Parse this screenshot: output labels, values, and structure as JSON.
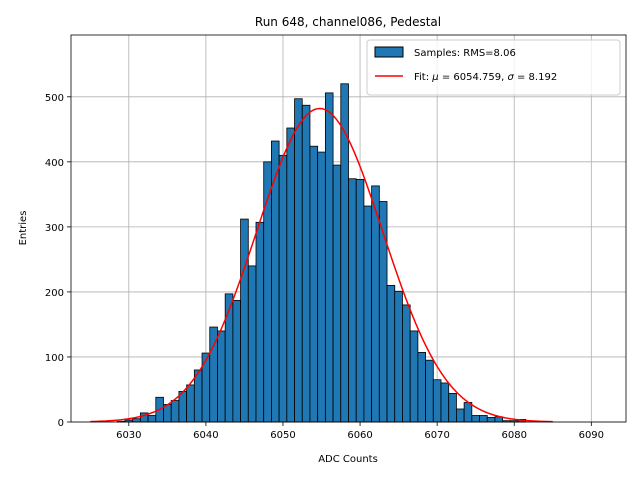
{
  "chart_data": {
    "type": "bar",
    "title": "Run 648, channel086, Pedestal",
    "xlabel": "ADC Counts",
    "ylabel": "Entries",
    "xlim": [
      6022.5,
      6094.5
    ],
    "ylim": [
      0,
      595
    ],
    "grid": true,
    "legend_position": "top-right",
    "xticks": [
      6030,
      6040,
      6050,
      6060,
      6070,
      6080,
      6090
    ],
    "yticks": [
      0,
      100,
      200,
      300,
      400,
      500
    ],
    "colors": {
      "bars": "#1f77b4",
      "bar_edge": "#000000",
      "fit": "#ff0000",
      "grid": "#b0b0b0"
    },
    "histogram": {
      "name": "Samples: RMS=8.06",
      "bin_width": 1,
      "bin_centers": [
        6026,
        6027,
        6028,
        6029,
        6030,
        6031,
        6032,
        6033,
        6034,
        6035,
        6036,
        6037,
        6038,
        6039,
        6040,
        6041,
        6042,
        6043,
        6044,
        6045,
        6046,
        6047,
        6048,
        6049,
        6050,
        6051,
        6052,
        6053,
        6054,
        6055,
        6056,
        6057,
        6058,
        6059,
        6060,
        6061,
        6062,
        6063,
        6064,
        6065,
        6066,
        6067,
        6068,
        6069,
        6070,
        6071,
        6072,
        6073,
        6074,
        6075,
        6076,
        6077,
        6078,
        6079,
        6080,
        6081,
        6082,
        6083,
        6084
      ],
      "values": [
        0,
        0,
        0,
        1,
        3,
        5,
        14,
        10,
        38,
        27,
        33,
        47,
        57,
        80,
        106,
        146,
        140,
        197,
        187,
        312,
        240,
        307,
        400,
        432,
        410,
        452,
        497,
        487,
        424,
        415,
        506,
        395,
        520,
        374,
        373,
        332,
        363,
        339,
        210,
        201,
        180,
        140,
        107,
        95,
        65,
        60,
        44,
        20,
        30,
        10,
        10,
        7,
        8,
        2,
        2,
        4,
        0,
        0,
        0
      ]
    },
    "fit": {
      "name": "Fit: μ = 6054.759, σ = 8.192",
      "name_text": "Fit: ",
      "mu_symbol": "μ",
      "mu_value": " = 6054.759, ",
      "sigma_symbol": "σ",
      "sigma_value": " = 8.192",
      "mu": 6054.759,
      "sigma": 8.192,
      "amplitude": 482,
      "x_range": [
        6025,
        6085
      ]
    }
  }
}
